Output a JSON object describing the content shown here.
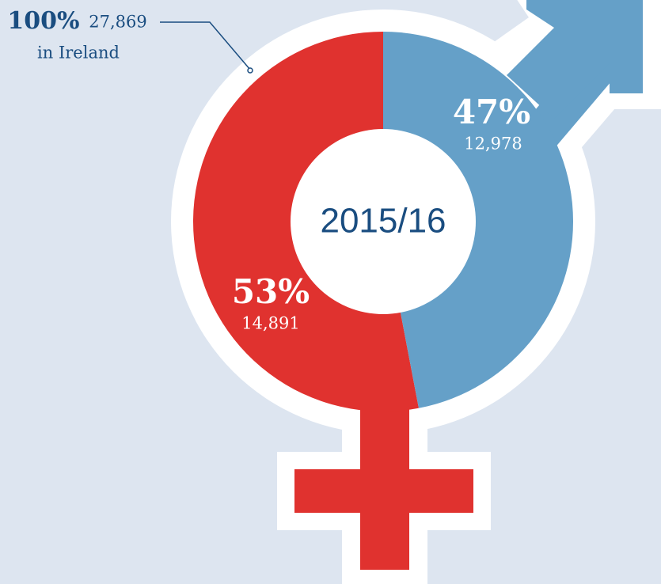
{
  "chart_data": {
    "type": "donut",
    "title": "2015/16",
    "values": [
      53,
      47
    ],
    "value_labels": [
      "53%",
      "47%"
    ],
    "counts": [
      14891,
      12978
    ],
    "count_labels": [
      "14,891",
      "12,978"
    ],
    "colors": [
      "#e0322f",
      "#65a0c8"
    ],
    "total": {
      "value": 100,
      "label": "100%"
    },
    "total_count": {
      "value": 27869,
      "label": "27,869"
    },
    "total_caption": "in Ireland"
  }
}
